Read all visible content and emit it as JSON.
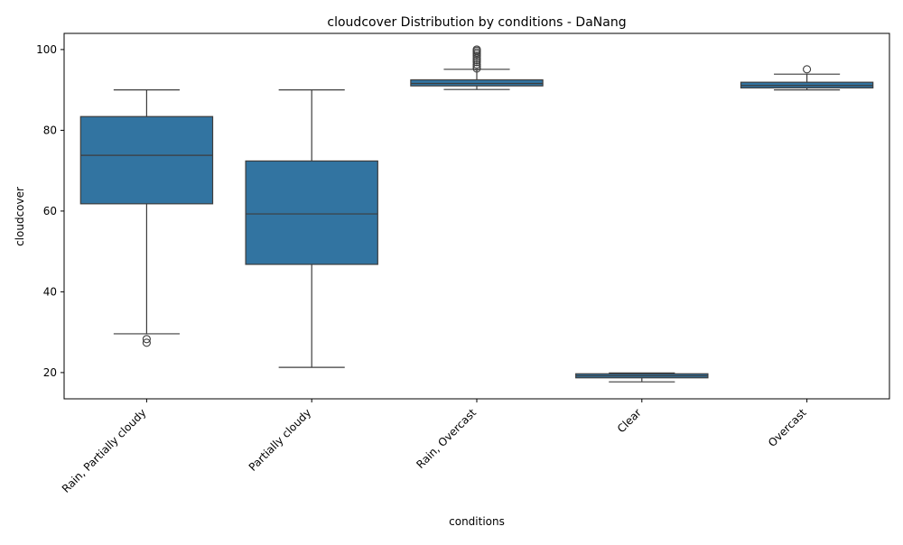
{
  "chart_data": {
    "type": "box",
    "title": "cloudcover Distribution by conditions - DaNang",
    "xlabel": "conditions",
    "ylabel": "cloudcover",
    "ylim": [
      13.5,
      104
    ],
    "yticks": [
      20,
      40,
      60,
      80,
      100
    ],
    "grid": false,
    "legend": "none",
    "box_color": "#3274a1",
    "line_color": "#3d3d3d",
    "categories": [
      "Rain, Partially cloudy",
      "Partially cloudy",
      "Rain, Overcast",
      "Clear",
      "Overcast"
    ],
    "boxes": [
      {
        "category": "Rain, Partially cloudy",
        "whislo": 29.6,
        "q1": 61.8,
        "med": 73.8,
        "q3": 83.4,
        "whishi": 90.0,
        "fliers": [
          28.3,
          27.4
        ]
      },
      {
        "category": "Partially cloudy",
        "whislo": 21.3,
        "q1": 46.8,
        "med": 59.3,
        "q3": 72.4,
        "whishi": 90.0,
        "fliers": []
      },
      {
        "category": "Rain, Overcast",
        "whislo": 90.1,
        "q1": 91.0,
        "med": 91.6,
        "q3": 92.5,
        "whishi": 95.1,
        "fliers": [
          95.3,
          95.8,
          96.3,
          96.9,
          97.4,
          97.9,
          98.4,
          98.9,
          99.3,
          99.7,
          100.0
        ]
      },
      {
        "category": "Clear",
        "whislo": 17.7,
        "q1": 18.7,
        "med": 19.2,
        "q3": 19.7,
        "whishi": 19.9,
        "fliers": []
      },
      {
        "category": "Overcast",
        "whislo": 90.0,
        "q1": 90.5,
        "med": 91.1,
        "q3": 91.9,
        "whishi": 93.9,
        "fliers": [
          95.1
        ]
      }
    ]
  }
}
